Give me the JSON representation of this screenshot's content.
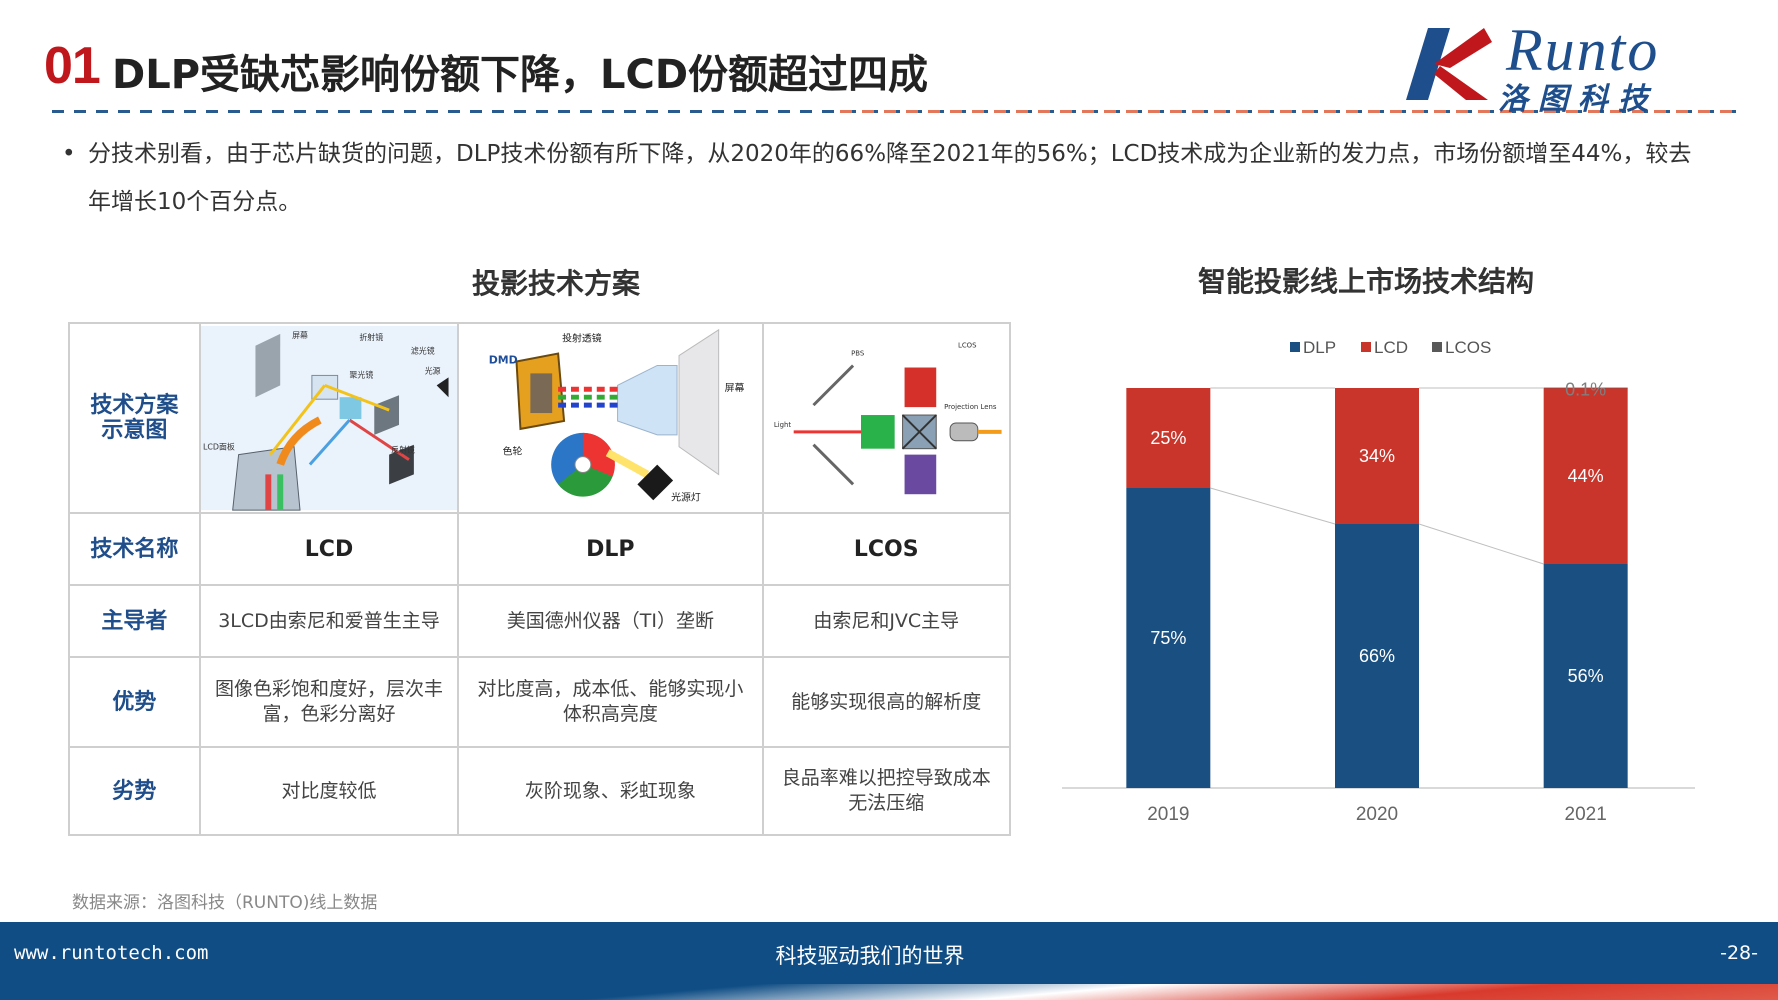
{
  "header": {
    "number": "01",
    "title": "DLP受缺芯影响份额下降，LCD份额超过四成",
    "logo_en": "Runto",
    "logo_cn": "洛图科技"
  },
  "bullet": {
    "marker": "•",
    "text": "分技术别看，由于芯片缺货的问题，DLP技术份额有所下降，从2020年的66%降至2021年的56%；LCD技术成为企业新的发力点，市场份额增至44%，较去年增长10个百分点。"
  },
  "table": {
    "title": "投影技术方案",
    "row_headers": {
      "diagram": "技术方案示意图",
      "name": "技术名称",
      "leader": "主导者",
      "advantage": "优势",
      "disadvantage": "劣势"
    },
    "diagram_labels": {
      "lcd": [
        "屏幕",
        "折射镜",
        "滤光镜",
        "反射镜",
        "聚光镜",
        "LCD面板",
        "光源"
      ],
      "dlp": [
        "投射透镜",
        "DMD",
        "屏幕",
        "色轮",
        "光源灯"
      ],
      "lcos": [
        "PBS",
        "LCOS",
        "Projection Lens",
        "Light"
      ]
    },
    "columns": [
      {
        "name": "LCD",
        "leader": "3LCD由索尼和爱普生主导",
        "advantage": "图像色彩饱和度好，层次丰富，色彩分离好",
        "disadvantage": "对比度较低"
      },
      {
        "name": "DLP",
        "leader": "美国德州仪器（TI）垄断",
        "advantage": "对比度高，成本低、能够实现小体积高亮度",
        "disadvantage": "灰阶现象、彩虹现象"
      },
      {
        "name": "LCOS",
        "leader": "由索尼和JVC主导",
        "advantage": "能够实现很高的解析度",
        "disadvantage": "良品率难以把控导致成本无法压缩"
      }
    ]
  },
  "chart_title": "智能投影线上市场技术结构",
  "chart_data": {
    "type": "bar",
    "stacked": true,
    "percent": true,
    "categories": [
      "2019",
      "2020",
      "2021"
    ],
    "series": [
      {
        "name": "DLP",
        "values": [
          75,
          66,
          56
        ],
        "labels": [
          "75%",
          "66%",
          "56%"
        ],
        "color": "#1a4f82"
      },
      {
        "name": "LCD",
        "values": [
          25,
          34,
          44
        ],
        "labels": [
          "25%",
          "34%",
          "44%"
        ],
        "color": "#c9352b"
      },
      {
        "name": "LCOS",
        "values": [
          0,
          0,
          0.1
        ],
        "labels": [
          "",
          "",
          "0.1%"
        ],
        "color": "#595959"
      }
    ],
    "ylim": [
      0,
      100
    ],
    "legend": "top",
    "connector_lines": true
  },
  "source": "数据来源：洛图科技（RUNTO)线上数据",
  "footer": {
    "url": "www.runtotech.com",
    "slogan": "科技驱动我们的世界",
    "page": "-28-"
  }
}
